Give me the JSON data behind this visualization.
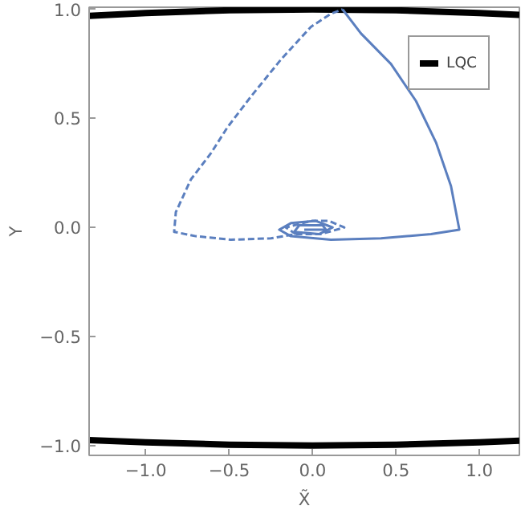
{
  "chart_data": {
    "type": "line",
    "xlabel": "X̃",
    "ylabel": "Y",
    "xlim": [
      -1.34,
      1.24
    ],
    "ylim": [
      -1.045,
      1.01
    ],
    "xticks": [
      {
        "value": -1,
        "label": "−1.0"
      },
      {
        "value": -0.5,
        "label": "−0.5"
      },
      {
        "value": 0,
        "label": "0.0"
      },
      {
        "value": 0.5,
        "label": "0.5"
      },
      {
        "value": 1,
        "label": "1.0"
      }
    ],
    "yticks": [
      {
        "value": -1,
        "label": "−1.0"
      },
      {
        "value": -0.5,
        "label": "−0.5"
      },
      {
        "value": 0,
        "label": "0.0"
      },
      {
        "value": 0.5,
        "label": "0.5"
      },
      {
        "value": 1,
        "label": "1.0"
      }
    ],
    "grid": false,
    "legend": "top right",
    "marker": "none",
    "series": [
      {
        "name": "LQC",
        "color": "#000000",
        "line_style": "solid",
        "x": [
          -1.34,
          -1.0,
          -0.5,
          0,
          0.5,
          1.0,
          1.24,
          null,
          -1.34,
          -1.0,
          -0.5,
          0,
          0.5,
          1.0,
          1.24
        ],
        "values": [
          0.97,
          0.983,
          0.996,
          1.0,
          0.996,
          0.983,
          0.975,
          null,
          -0.975,
          -0.985,
          -0.996,
          -1.0,
          -0.996,
          -0.985,
          -0.978
        ]
      },
      {
        "color": "#5b7fbf",
        "line_style": "dashed",
        "x": [
          -0.1,
          0.05,
          0.19,
          0.1,
          -0.01,
          -0.16,
          -0.1,
          -0.25,
          -0.49,
          -0.7,
          -0.83,
          -0.82,
          -0.73,
          -0.61,
          -0.51,
          -0.37,
          -0.19,
          -0.01,
          0.11,
          0.18
        ],
        "values": [
          -0.03,
          -0.03,
          0.0,
          0.03,
          0.03,
          0.0,
          -0.03,
          -0.05,
          -0.056,
          -0.04,
          -0.02,
          0.07,
          0.22,
          0.34,
          0.46,
          0.6,
          0.77,
          0.92,
          0.98,
          1.0
        ]
      },
      {
        "color": "#5b7fbf",
        "line_style": "solid",
        "x": [
          0.18,
          0.29,
          0.47,
          0.62,
          0.74,
          0.83,
          0.88,
          0.71,
          0.41,
          0.11,
          -0.13,
          -0.2,
          -0.13,
          0.02,
          0.12,
          0.04,
          -0.11,
          -0.08,
          0.06,
          0.08,
          -0.05
        ],
        "values": [
          1.0,
          0.89,
          0.75,
          0.58,
          0.39,
          0.19,
          -0.01,
          -0.03,
          -0.05,
          -0.056,
          -0.04,
          -0.01,
          0.02,
          0.03,
          0.0,
          -0.03,
          -0.02,
          0.01,
          0.01,
          -0.01,
          -0.01
        ]
      }
    ]
  }
}
